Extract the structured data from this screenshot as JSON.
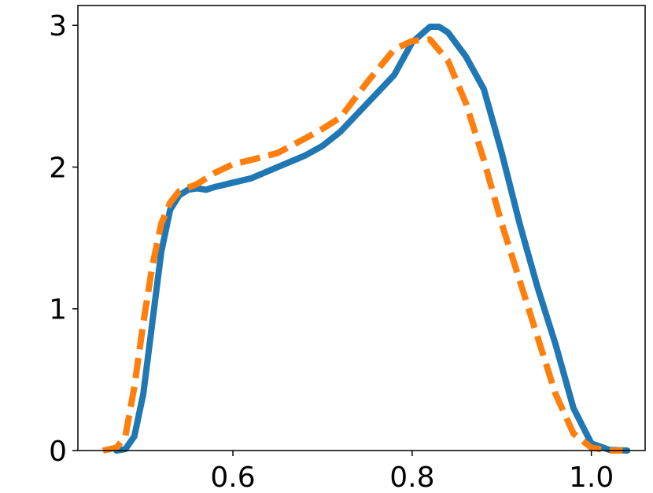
{
  "chart_data": {
    "type": "line",
    "xlim": [
      0.427,
      1.06
    ],
    "ylim": [
      0,
      3.14
    ],
    "xticks": [
      0.6,
      0.8,
      {
        "value": 1.0,
        "label": "1.0"
      }
    ],
    "yticks": [
      0,
      1,
      2,
      3
    ],
    "series": [
      {
        "color": "#1f77b4",
        "dash": false,
        "x": [
          0.47,
          0.48,
          0.49,
          0.5,
          0.51,
          0.52,
          0.53,
          0.54,
          0.55,
          0.56,
          0.57,
          0.58,
          0.6,
          0.62,
          0.65,
          0.68,
          0.7,
          0.72,
          0.75,
          0.78,
          0.8,
          0.82,
          0.83,
          0.84,
          0.86,
          0.88,
          0.9,
          0.92,
          0.94,
          0.96,
          0.98,
          1.0,
          1.02,
          1.04
        ],
        "values": [
          0,
          0.01,
          0.1,
          0.4,
          0.9,
          1.4,
          1.7,
          1.8,
          1.84,
          1.85,
          1.84,
          1.86,
          1.89,
          1.92,
          2.0,
          2.08,
          2.15,
          2.25,
          2.45,
          2.65,
          2.88,
          2.99,
          2.99,
          2.95,
          2.78,
          2.55,
          2.1,
          1.6,
          1.15,
          0.75,
          0.3,
          0.05,
          0.005,
          0
        ]
      },
      {
        "color": "#ff7f0e",
        "dash": true,
        "x": [
          0.455,
          0.47,
          0.48,
          0.49,
          0.5,
          0.51,
          0.52,
          0.53,
          0.54,
          0.56,
          0.58,
          0.6,
          0.62,
          0.65,
          0.68,
          0.7,
          0.72,
          0.75,
          0.78,
          0.8,
          0.82,
          0.84,
          0.86,
          0.88,
          0.9,
          0.92,
          0.94,
          0.96,
          0.98,
          1.0,
          1.02,
          1.035
        ],
        "values": [
          0,
          0.02,
          0.1,
          0.45,
          0.9,
          1.3,
          1.6,
          1.75,
          1.83,
          1.88,
          1.96,
          2.02,
          2.05,
          2.1,
          2.2,
          2.27,
          2.35,
          2.6,
          2.83,
          2.89,
          2.9,
          2.75,
          2.45,
          2.05,
          1.6,
          1.2,
          0.8,
          0.4,
          0.12,
          0.02,
          0.0,
          0
        ]
      }
    ]
  }
}
